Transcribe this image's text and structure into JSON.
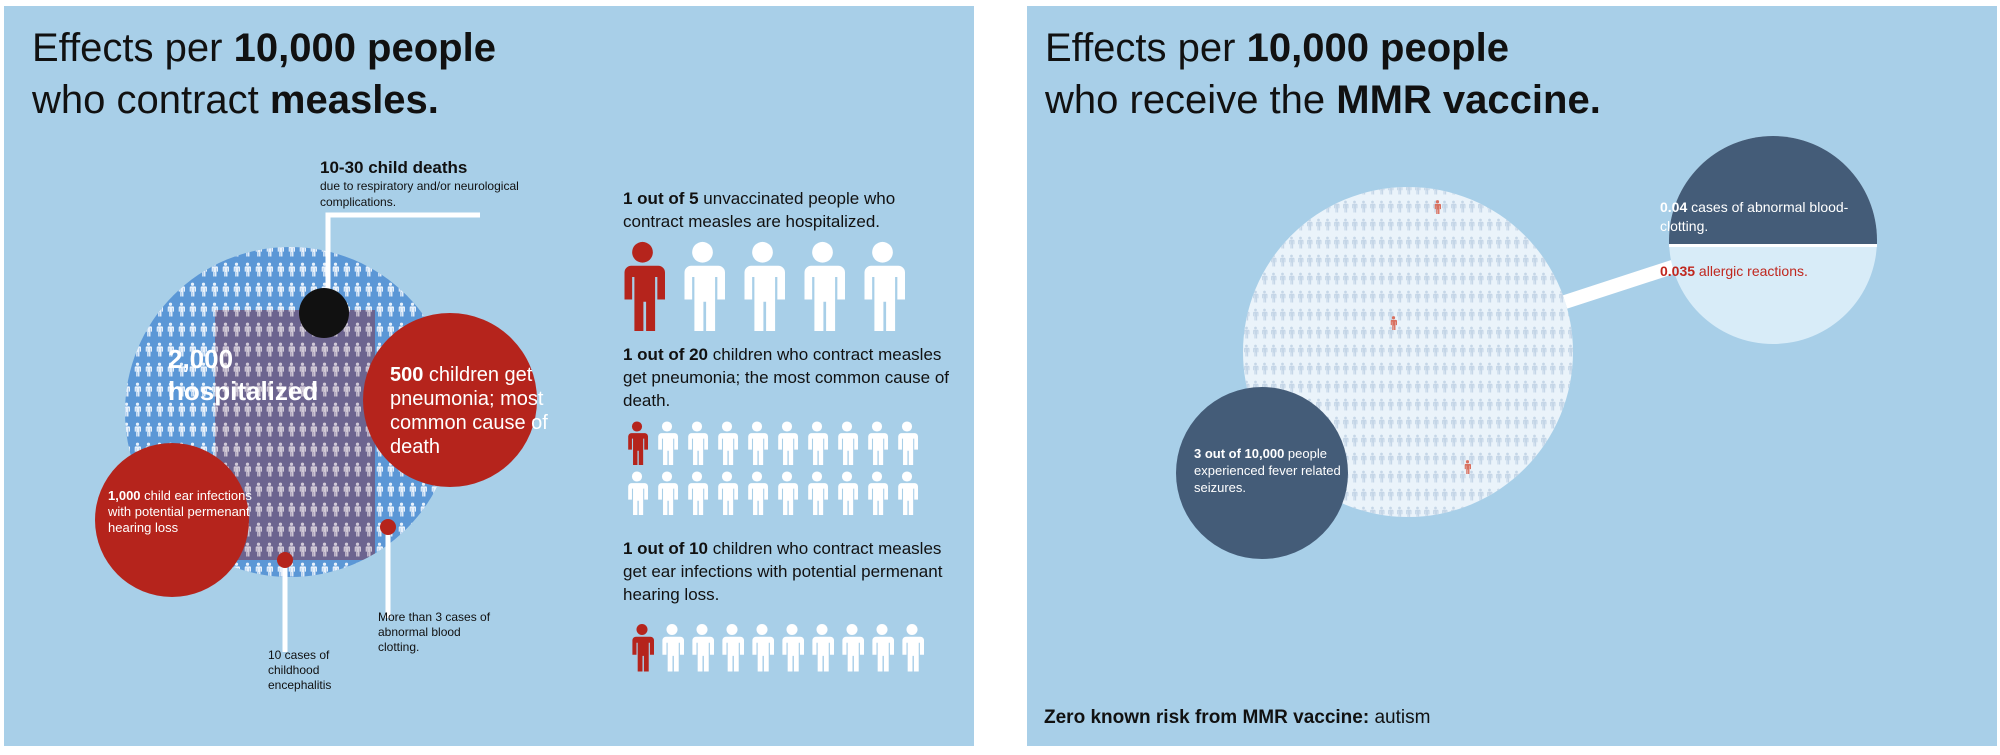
{
  "left": {
    "title_prefix": "Effects per ",
    "title_bold": "10,000 people",
    "title_line2_prefix": "who contract ",
    "title_line2_bold": "measles.",
    "deaths_heading": "10-30 child deaths",
    "deaths_detail": "due to respiratory and/or neurological complications.",
    "hospitalized_count": "2,000",
    "hospitalized_word": "hospitalized",
    "pneumonia_count": "500",
    "pneumonia_text": " children get pneumonia; most common cause of death",
    "ear_count": "1,000",
    "ear_text": " child ear infections with potential permenant hearing loss",
    "encephalitis_text": "10 cases of childhood encephalitis",
    "clotting_text": "More than 3 cases of abnormal blood clotting.",
    "stats": [
      {
        "bold": "1 out of 5",
        "text": " unvaccinated people who contract measles are hospitalized."
      },
      {
        "bold": "1 out of 20",
        "text": " children who contract measles get pneumonia; the most common cause of death."
      },
      {
        "bold": "1 out of 10",
        "text": " children who contract measles get ear infections with potential permenant hearing loss."
      }
    ]
  },
  "right": {
    "title_prefix": "Effects per ",
    "title_bold": "10,000 people",
    "title_line2_prefix": "who receive the ",
    "title_line2_bold": "MMR vaccine.",
    "clotting_rate": "0.04",
    "clotting_text": " cases of abnormal blood-clotting.",
    "allergy_rate": "0.035",
    "allergy_text": " allergic reactions.",
    "seizure_bold": "3 out of 10,000",
    "seizure_text": " people experienced fever related seizures.",
    "autism_bold": "Zero known risk from MMR vaccine:",
    "autism_text": " autism"
  },
  "colors": {
    "background": "#a8cfe8",
    "measles_red": "#b5241c",
    "blue_circle": "#5b97d6",
    "navy": "#445c78",
    "light_circle": "#d8ecf8"
  },
  "icon_names": [
    "person-icon"
  ]
}
